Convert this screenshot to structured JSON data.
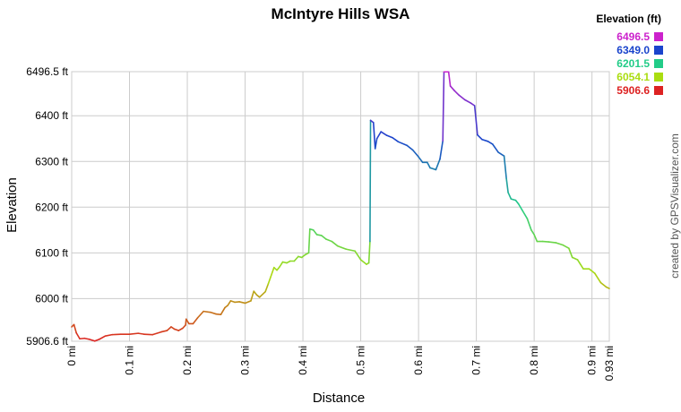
{
  "chart_data": {
    "type": "line",
    "title": "McIntyre Hills WSA",
    "xlabel": "Distance",
    "ylabel": "Elevation",
    "credit": "created by GPSVisualizer.com",
    "xlim": [
      0,
      0.93
    ],
    "ylim": [
      5906.6,
      6496.5
    ],
    "grid": true,
    "legend_placement": "top-right",
    "x_ticks": [
      {
        "value": 0,
        "label": "0 mi"
      },
      {
        "value": 0.1,
        "label": "0.1 mi"
      },
      {
        "value": 0.2,
        "label": "0.2 mi"
      },
      {
        "value": 0.3,
        "label": "0.3 mi"
      },
      {
        "value": 0.4,
        "label": "0.4 mi"
      },
      {
        "value": 0.5,
        "label": "0.5 mi"
      },
      {
        "value": 0.6,
        "label": "0.6 mi"
      },
      {
        "value": 0.7,
        "label": "0.7 mi"
      },
      {
        "value": 0.8,
        "label": "0.8 mi"
      },
      {
        "value": 0.9,
        "label": "0.9 mi"
      },
      {
        "value": 0.93,
        "label": "0.93 mi"
      }
    ],
    "y_ticks": [
      {
        "value": 5906.6,
        "label": "5906.6 ft"
      },
      {
        "value": 6000,
        "label": "6000 ft"
      },
      {
        "value": 6100,
        "label": "6100 ft"
      },
      {
        "value": 6200,
        "label": "6200 ft"
      },
      {
        "value": 6300,
        "label": "6300 ft"
      },
      {
        "value": 6400,
        "label": "6400 ft"
      },
      {
        "value": 6496.5,
        "label": "6496.5 ft"
      }
    ],
    "legend": {
      "title": "Elevation (ft)",
      "entries": [
        {
          "label": "6496.5",
          "color": "#cc22cc"
        },
        {
          "label": "6349.0",
          "color": "#1a44cc"
        },
        {
          "label": "6201.5",
          "color": "#22cc88"
        },
        {
          "label": "6054.1",
          "color": "#aadd11"
        },
        {
          "label": "5906.6",
          "color": "#dd2222"
        }
      ]
    },
    "series": [
      {
        "color_scale": true,
        "points": [
          [
            0,
            5938
          ],
          [
            0.004,
            5943
          ],
          [
            0.008,
            5925
          ],
          [
            0.014,
            5912
          ],
          [
            0.022,
            5913
          ],
          [
            0.03,
            5911
          ],
          [
            0.04,
            5907
          ],
          [
            0.048,
            5911
          ],
          [
            0.058,
            5918
          ],
          [
            0.07,
            5921
          ],
          [
            0.085,
            5922
          ],
          [
            0.1,
            5922
          ],
          [
            0.115,
            5924
          ],
          [
            0.125,
            5922
          ],
          [
            0.14,
            5921
          ],
          [
            0.155,
            5927
          ],
          [
            0.165,
            5930
          ],
          [
            0.172,
            5938
          ],
          [
            0.178,
            5933
          ],
          [
            0.185,
            5930
          ],
          [
            0.192,
            5935
          ],
          [
            0.197,
            5942
          ],
          [
            0.198,
            5955
          ],
          [
            0.203,
            5945
          ],
          [
            0.21,
            5945
          ],
          [
            0.218,
            5958
          ],
          [
            0.228,
            5972
          ],
          [
            0.24,
            5970
          ],
          [
            0.25,
            5966
          ],
          [
            0.258,
            5965
          ],
          [
            0.265,
            5980
          ],
          [
            0.27,
            5985
          ],
          [
            0.275,
            5995
          ],
          [
            0.282,
            5992
          ],
          [
            0.29,
            5993
          ],
          [
            0.3,
            5990
          ],
          [
            0.31,
            5995
          ],
          [
            0.315,
            6016
          ],
          [
            0.32,
            6008
          ],
          [
            0.325,
            6003
          ],
          [
            0.335,
            6015
          ],
          [
            0.34,
            6032
          ],
          [
            0.35,
            6068
          ],
          [
            0.355,
            6062
          ],
          [
            0.36,
            6070
          ],
          [
            0.365,
            6080
          ],
          [
            0.372,
            6078
          ],
          [
            0.378,
            6082
          ],
          [
            0.385,
            6082
          ],
          [
            0.392,
            6092
          ],
          [
            0.398,
            6090
          ],
          [
            0.404,
            6096
          ],
          [
            0.41,
            6100
          ],
          [
            0.412,
            6152
          ],
          [
            0.418,
            6150
          ],
          [
            0.424,
            6140
          ],
          [
            0.432,
            6138
          ],
          [
            0.44,
            6130
          ],
          [
            0.45,
            6125
          ],
          [
            0.46,
            6115
          ],
          [
            0.475,
            6108
          ],
          [
            0.49,
            6104
          ],
          [
            0.5,
            6085
          ],
          [
            0.51,
            6075
          ],
          [
            0.514,
            6078
          ],
          [
            0.516,
            6125
          ],
          [
            0.517,
            6390
          ],
          [
            0.522,
            6385
          ],
          [
            0.525,
            6328
          ],
          [
            0.528,
            6350
          ],
          [
            0.535,
            6365
          ],
          [
            0.545,
            6357
          ],
          [
            0.555,
            6352
          ],
          [
            0.565,
            6343
          ],
          [
            0.58,
            6335
          ],
          [
            0.59,
            6325
          ],
          [
            0.6,
            6310
          ],
          [
            0.607,
            6298
          ],
          [
            0.615,
            6298
          ],
          [
            0.62,
            6286
          ],
          [
            0.63,
            6282
          ],
          [
            0.637,
            6305
          ],
          [
            0.642,
            6345
          ],
          [
            0.644,
            6496
          ],
          [
            0.652,
            6496
          ],
          [
            0.655,
            6465
          ],
          [
            0.662,
            6455
          ],
          [
            0.67,
            6445
          ],
          [
            0.68,
            6435
          ],
          [
            0.69,
            6428
          ],
          [
            0.697,
            6422
          ],
          [
            0.702,
            6358
          ],
          [
            0.71,
            6348
          ],
          [
            0.72,
            6344
          ],
          [
            0.728,
            6338
          ],
          [
            0.738,
            6320
          ],
          [
            0.748,
            6312
          ],
          [
            0.752,
            6262
          ],
          [
            0.755,
            6232
          ],
          [
            0.76,
            6218
          ],
          [
            0.768,
            6215
          ],
          [
            0.773,
            6207
          ],
          [
            0.78,
            6192
          ],
          [
            0.788,
            6175
          ],
          [
            0.795,
            6150
          ],
          [
            0.8,
            6140
          ],
          [
            0.805,
            6125
          ],
          [
            0.815,
            6125
          ],
          [
            0.825,
            6124
          ],
          [
            0.838,
            6122
          ],
          [
            0.85,
            6117
          ],
          [
            0.86,
            6110
          ],
          [
            0.866,
            6090
          ],
          [
            0.875,
            6085
          ],
          [
            0.88,
            6075
          ],
          [
            0.885,
            6065
          ],
          [
            0.895,
            6065
          ],
          [
            0.905,
            6055
          ],
          [
            0.915,
            6035
          ],
          [
            0.925,
            6025
          ],
          [
            0.93,
            6022
          ]
        ]
      }
    ]
  }
}
